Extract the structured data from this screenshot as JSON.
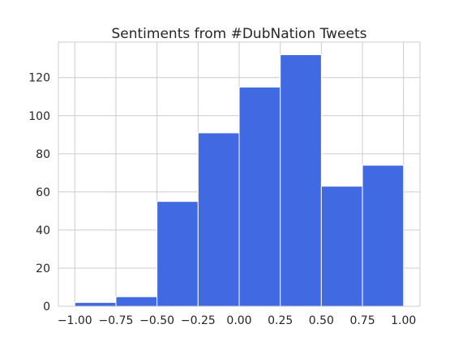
{
  "chart_data": {
    "type": "bar",
    "title": "Sentiments from #DubNation Tweets",
    "xlabel": "",
    "ylabel": "",
    "bin_edges": [
      -1.0,
      -0.75,
      -0.5,
      -0.25,
      0.0,
      0.25,
      0.5,
      0.75,
      1.0
    ],
    "values": [
      2,
      5,
      55,
      91,
      115,
      132,
      63,
      74
    ],
    "xlim": [
      -1.1,
      1.1
    ],
    "ylim": [
      0,
      138.6
    ],
    "xticks": [
      -1.0,
      -0.75,
      -0.5,
      -0.25,
      0.0,
      0.25,
      0.5,
      0.75,
      1.0
    ],
    "xtick_labels": [
      "−1.00",
      "−0.75",
      "−0.50",
      "−0.25",
      "0.00",
      "0.25",
      "0.50",
      "0.75",
      "1.00"
    ],
    "yticks": [
      0,
      20,
      40,
      60,
      80,
      100,
      120
    ],
    "ytick_labels": [
      "0",
      "20",
      "40",
      "60",
      "80",
      "100",
      "120"
    ],
    "grid": true,
    "bar_color": "#4169e1"
  }
}
